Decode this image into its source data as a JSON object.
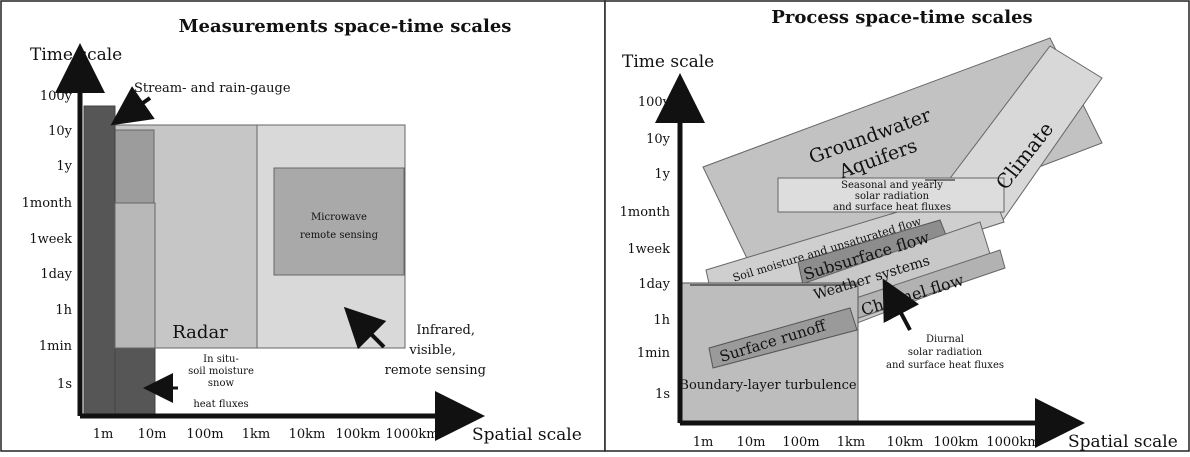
{
  "left_panel": {
    "title": "Measurements space-time scales",
    "y_axis_title": "Time scale",
    "x_axis_title": "Spatial scale",
    "y_ticks": [
      "100y",
      "10y",
      "1y",
      "1month",
      "1week",
      "1day",
      "1h",
      "1min",
      "1s"
    ],
    "x_ticks": [
      "1m",
      "10m",
      "100m",
      "1km",
      "10km",
      "100km",
      "1000km"
    ],
    "annotations": {
      "gauge": "Stream- and rain-gauge",
      "microwave": [
        "Microwave",
        "remote sensing"
      ],
      "radar": "Radar",
      "insitu": [
        "In situ-",
        "soil moisture",
        "snow",
        "heat fluxes"
      ],
      "infrared": [
        "Infrared,",
        "visible,",
        "remote sensing"
      ]
    }
  },
  "right_panel": {
    "title": "Process space-time scales",
    "y_axis_title": "Time scale",
    "x_axis_title": "Spatial scale",
    "y_ticks": [
      "100y",
      "10y",
      "1y",
      "1month",
      "1week",
      "1day",
      "1h",
      "1min",
      "1s"
    ],
    "x_ticks": [
      "1m",
      "10m",
      "100m",
      "1km",
      "10km",
      "100km",
      "1000km"
    ],
    "annotations": {
      "groundwater": [
        "Groundwater",
        "Aquifers"
      ],
      "climate": "Climate",
      "seasonal": [
        "Seasonal and yearly",
        "solar radiation",
        "and surface heat fluxes"
      ],
      "soil": "Soil moisture and unsaturated flow",
      "subsurface": "Subsurface flow",
      "weather": "Weather systems",
      "channel": "Channel flow",
      "surface_runoff": "Surface runoff",
      "boundary": "Boundary-layer turbulence",
      "diurnal": [
        "Diurnal",
        "solar radiation",
        "and surface heat fluxes"
      ]
    }
  }
}
